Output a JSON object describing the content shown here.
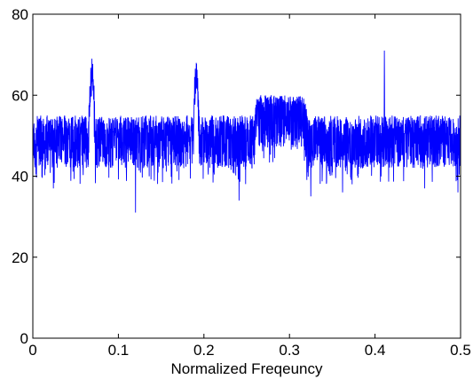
{
  "chart_data": {
    "type": "line",
    "title": "",
    "xlabel": "Normalized Freqeuncy",
    "ylabel": "",
    "xlim": [
      0,
      0.5
    ],
    "ylim": [
      0,
      80
    ],
    "xticks": [
      0,
      0.1,
      0.2,
      0.3,
      0.4,
      0.5
    ],
    "xtick_labels": [
      "0",
      "0.1",
      "0.2",
      "0.3",
      "0.4",
      "0.5"
    ],
    "yticks": [
      0,
      20,
      40,
      60,
      80
    ],
    "ytick_labels": [
      "0",
      "20",
      "40",
      "60",
      "80"
    ],
    "grid": false,
    "legend": "none",
    "series": [
      {
        "color": "#0000ff",
        "description_of_shape": "dense noise floor around 50 with peaks",
        "noise_floor": {
          "mean": 50,
          "spread_low": 42,
          "spread_high": 55
        },
        "features": [
          {
            "kind": "narrow_peak",
            "center": 0.069,
            "width": 0.008,
            "peak": 69
          },
          {
            "kind": "narrow_peak",
            "center": 0.191,
            "width": 0.008,
            "peak": 68
          },
          {
            "kind": "broad_plateau",
            "start": 0.262,
            "end": 0.318,
            "level": 60
          },
          {
            "kind": "spike",
            "center": 0.411,
            "peak": 71
          }
        ],
        "deep_dips": [
          {
            "x": 0.12,
            "y": 31
          },
          {
            "x": 0.024,
            "y": 37
          },
          {
            "x": 0.241,
            "y": 34
          },
          {
            "x": 0.325,
            "y": 35
          },
          {
            "x": 0.362,
            "y": 36
          },
          {
            "x": 0.458,
            "y": 37
          },
          {
            "x": 0.497,
            "y": 36
          }
        ]
      }
    ]
  }
}
